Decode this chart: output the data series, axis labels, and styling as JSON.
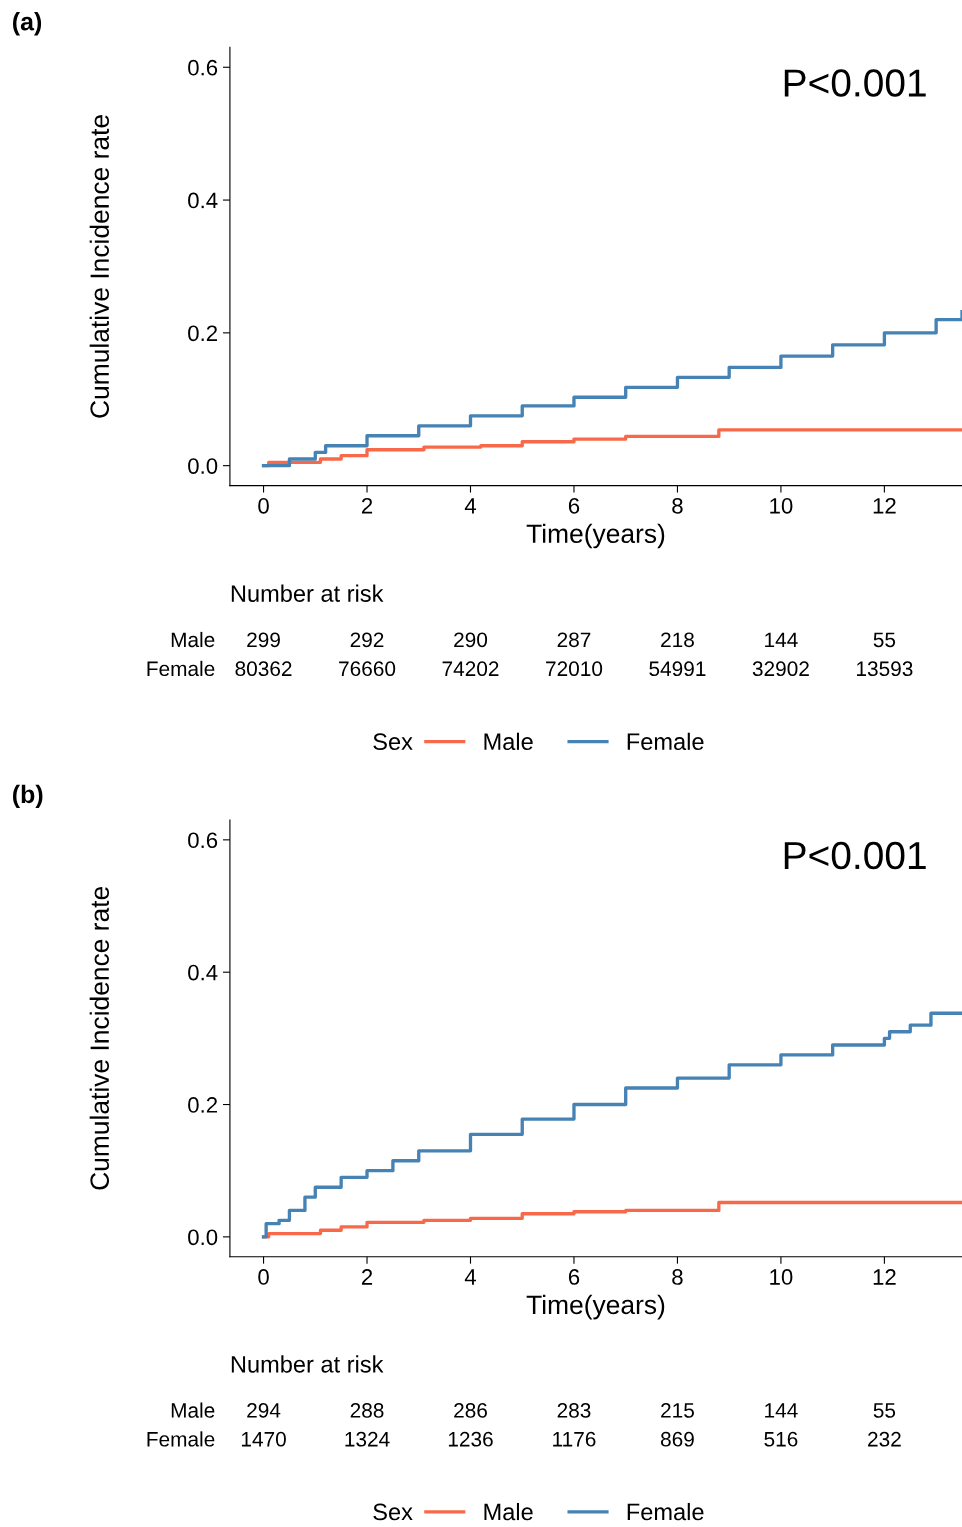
{
  "chart_data": [
    {
      "type": "step",
      "title": "(a)",
      "xlabel": "Time(years)",
      "ylabel": "Cumulative Incidence rate",
      "legend_title": "Sex",
      "legend": "bottom",
      "xlim": [
        -0.65,
        13.5
      ],
      "xticks": [
        0,
        2,
        4,
        6,
        8,
        10,
        12
      ],
      "ylim": [
        -0.03,
        0.63
      ],
      "yticks": [
        {
          "value": 0,
          "label": "0.0"
        },
        0.2,
        0.4,
        0.6
      ],
      "grid": false,
      "annotations": [
        "P<0.001",
        "Number at risk",
        "Male",
        "299",
        "292",
        "290",
        "287",
        "218",
        "144",
        "55",
        "Female",
        "80362",
        "76660",
        "74202",
        "72010",
        "54991",
        "32902",
        "13593"
      ],
      "series": [
        {
          "name": "Male",
          "color": "#f8694a",
          "x": [
            0,
            0.1,
            1.1,
            1.5,
            2,
            3.1,
            4.2,
            5,
            6,
            7,
            8.8,
            13.5
          ],
          "values": [
            0,
            0.005,
            0.01,
            0.015,
            0.024,
            0.028,
            0.03,
            0.036,
            0.04,
            0.044,
            0.054,
            0.054
          ]
        },
        {
          "name": "Female",
          "color": "#4682b4",
          "x": [
            0,
            0.5,
            1,
            1.2,
            2,
            3,
            4,
            5,
            6,
            7,
            8,
            9,
            10,
            11,
            12,
            13,
            13.5
          ],
          "values": [
            0,
            0.01,
            0.02,
            0.03,
            0.045,
            0.06,
            0.075,
            0.09,
            0.103,
            0.118,
            0.133,
            0.148,
            0.165,
            0.182,
            0.2,
            0.22,
            0.232
          ]
        }
      ]
    },
    {
      "type": "step",
      "title": "(b)",
      "xlabel": "Time(years)",
      "ylabel": "Cumulative Incidence rate",
      "legend_title": "Sex",
      "legend": "bottom",
      "xlim": [
        -0.65,
        13.5
      ],
      "xticks": [
        0,
        2,
        4,
        6,
        8,
        10,
        12
      ],
      "ylim": [
        -0.03,
        0.63
      ],
      "yticks": [
        {
          "value": 0,
          "label": "0.0"
        },
        0.2,
        0.4,
        0.6
      ],
      "grid": false,
      "annotations": [
        "P<0.001",
        "Number at risk",
        "Male",
        "294",
        "288",
        "286",
        "283",
        "215",
        "144",
        "55",
        "Female",
        "1470",
        "1324",
        "1236",
        "1176",
        "869",
        "516",
        "232"
      ],
      "series": [
        {
          "name": "Male",
          "color": "#f8694a",
          "x": [
            0,
            0.1,
            1.1,
            1.5,
            2,
            3.1,
            4,
            5,
            6,
            7,
            8.8,
            13.5
          ],
          "values": [
            0,
            0.005,
            0.01,
            0.015,
            0.022,
            0.025,
            0.028,
            0.035,
            0.038,
            0.04,
            0.052,
            0.052
          ]
        },
        {
          "name": "Female",
          "color": "#4682b4",
          "x": [
            0,
            0.05,
            0.3,
            0.5,
            0.8,
            1,
            1.5,
            2,
            2.5,
            3,
            4,
            5,
            6,
            7,
            8,
            9,
            10,
            11,
            12,
            12.1,
            12.5,
            12.9,
            13.5
          ],
          "values": [
            0,
            0.02,
            0.025,
            0.04,
            0.06,
            0.075,
            0.09,
            0.1,
            0.115,
            0.13,
            0.155,
            0.178,
            0.2,
            0.225,
            0.24,
            0.26,
            0.275,
            0.29,
            0.3,
            0.31,
            0.32,
            0.338,
            0.338
          ]
        }
      ]
    }
  ]
}
